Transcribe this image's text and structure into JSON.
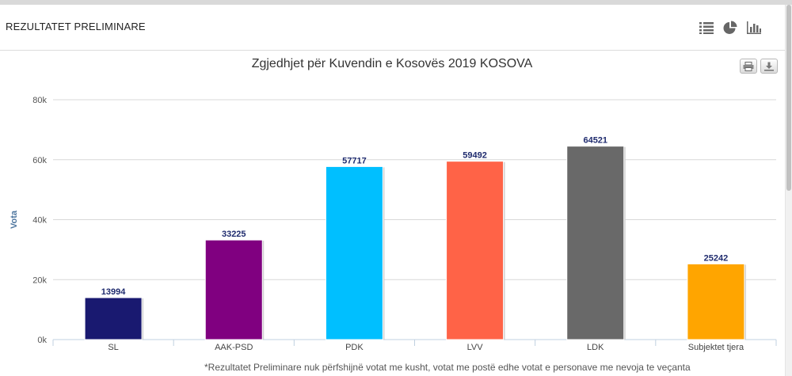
{
  "panel": {
    "title": "REZULTATET PRELIMINARE",
    "view_icons": [
      "list-icon",
      "pie-chart-icon",
      "bar-chart-icon"
    ]
  },
  "export_icons": [
    "print-icon",
    "download-icon"
  ],
  "footnote": "*Rezultatet Preliminare nuk përfshijnë votat me kusht, votat me postë edhe votat e personave me nevoja te veçanta",
  "chart_data": {
    "type": "bar",
    "title": "Zgjedhjet për Kuvendin e Kosovës 2019 KOSOVA",
    "xlabel": "",
    "ylabel": "Vota",
    "ylim": [
      0,
      80000
    ],
    "yticks": [
      0,
      20000,
      40000,
      60000,
      80000
    ],
    "ytick_labels": [
      "0k",
      "20k",
      "40k",
      "60k",
      "80k"
    ],
    "grid": true,
    "legend": "none",
    "categories": [
      "SL",
      "AAK-PSD",
      "PDK",
      "LVV",
      "LDK",
      "Subjektet tjera"
    ],
    "values": [
      13994,
      33225,
      57717,
      59492,
      64521,
      25242
    ],
    "colors": [
      "#191970",
      "#800080",
      "#00BFFF",
      "#FF6347",
      "#696969",
      "#FFA500"
    ],
    "data_label_color": "#1f2b6e"
  }
}
